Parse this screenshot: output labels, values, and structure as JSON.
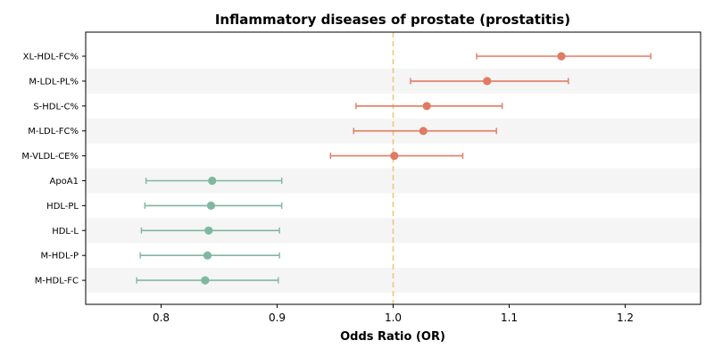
{
  "chart_data": {
    "type": "forest",
    "title": "Inflammatory diseases of prostate (prostatitis)",
    "xlabel": "Odds Ratio (OR)",
    "ylabel": "",
    "xlim": [
      0.735,
      1.265
    ],
    "xticks": [
      0.8,
      0.9,
      1.0,
      1.1,
      1.2
    ],
    "xtick_labels": [
      "0.8",
      "0.9",
      "1.0",
      "1.1",
      "1.2"
    ],
    "reference_line": 1.0,
    "categories": [
      "XL-HDL-FC%",
      "M-LDL-PL%",
      "S-HDL-C%",
      "M-LDL-FC%",
      "M-VLDL-CE%",
      "ApoA1",
      "HDL-PL",
      "HDL-L",
      "M-HDL-P",
      "M-HDL-FC"
    ],
    "or": [
      1.145,
      1.081,
      1.029,
      1.026,
      1.001,
      0.844,
      0.843,
      0.841,
      0.84,
      0.838
    ],
    "ci_low": [
      1.072,
      1.015,
      0.968,
      0.966,
      0.946,
      0.787,
      0.786,
      0.783,
      0.782,
      0.779
    ],
    "ci_high": [
      1.222,
      1.151,
      1.094,
      1.089,
      1.06,
      0.904,
      0.904,
      0.902,
      0.902,
      0.901
    ],
    "colors": {
      "increase": "#e07b63",
      "decrease": "#7fb89e",
      "reference": "#f2c57c",
      "stripe": "#f5f5f5"
    }
  }
}
